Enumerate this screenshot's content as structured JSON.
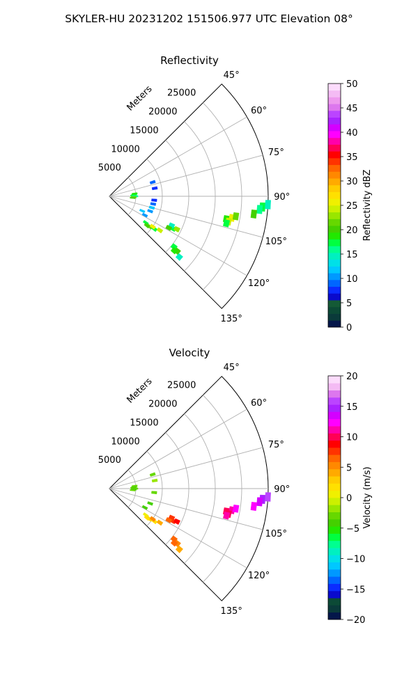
{
  "figure": {
    "suptitle": "SKYLER-HU  20231202  151506.977 UTC Elevation 08°"
  },
  "chart_data": [
    {
      "type": "heatmap",
      "projection": "polar-sector",
      "title": "Reflectivity",
      "radial_label": "Meters",
      "radial_ticks": [
        5000,
        10000,
        15000,
        20000,
        25000
      ],
      "radial_tick_labels": [
        "5000",
        "10000",
        "15000",
        "20000",
        "25000"
      ],
      "rmax": 30000,
      "angle_range_deg": [
        45,
        135
      ],
      "angular_ticks": [
        45,
        60,
        75,
        90,
        105,
        120,
        135
      ],
      "angular_tick_labels": [
        "45°",
        "60°",
        "75°",
        "90°",
        "105°",
        "120°",
        "135°"
      ],
      "grid": true,
      "colorbar": {
        "label": "Reflectivity dBZ",
        "range": [
          0,
          50
        ],
        "ticks": [
          0,
          5,
          10,
          15,
          20,
          25,
          30,
          35,
          40,
          45,
          50
        ],
        "tick_labels": [
          "0",
          "5",
          "10",
          "15",
          "20",
          "25",
          "30",
          "35",
          "40",
          "45",
          "50"
        ],
        "colors": [
          "#04164a",
          "#0a3a3a",
          "#0c4a36",
          "#145a36",
          "#0a0acc",
          "#0b2cff",
          "#0066ff",
          "#0099ff",
          "#00c8ff",
          "#00e0e8",
          "#00f0c0",
          "#00ff90",
          "#00ff40",
          "#22e800",
          "#44d000",
          "#66d800",
          "#99e600",
          "#ccf000",
          "#f0f000",
          "#ffe000",
          "#ffcc00",
          "#ffaa00",
          "#ff8800",
          "#ff6600",
          "#ff3300",
          "#ff0000",
          "#ff0055",
          "#ff00aa",
          "#ff00ff",
          "#d400ff",
          "#aa22ff",
          "#bb44ff",
          "#dd77ee",
          "#ee99ee",
          "#f4bbf4",
          "#fcdcfc"
        ]
      },
      "series": [
        {
          "points": [
            [
              88,
              4500,
              17
            ],
            [
              86,
              4700,
              18
            ],
            [
              90,
              4900,
              16
            ],
            [
              92,
              4600,
              21
            ],
            [
              84,
              4800,
              19
            ],
            [
              94,
              4400,
              20
            ]
          ]
        },
        {
          "points": [
            [
              110,
              8200,
              11
            ],
            [
              105,
              8300,
              12
            ],
            [
              100,
              8400,
              9
            ],
            [
              95,
              8500,
              8
            ],
            [
              80,
              8700,
              7
            ],
            [
              72,
              8600,
              9
            ],
            [
              118,
              7600,
              10
            ],
            [
              114,
              6800,
              12
            ]
          ]
        },
        {
          "points": [
            [
              126,
              8500,
              18
            ],
            [
              127,
              9500,
              22
            ],
            [
              126,
              10500,
              17
            ],
            [
              124,
              11500,
              24
            ],
            [
              125,
              10000,
              26
            ],
            [
              128,
              9000,
              20
            ]
          ]
        },
        {
          "points": [
            [
              117,
              13500,
              18
            ],
            [
              116,
              14200,
              23
            ],
            [
              115,
              13000,
              14
            ],
            [
              118,
              12700,
              20
            ]
          ]
        },
        {
          "points": [
            [
              128,
              15500,
              17
            ],
            [
              129,
              16500,
              20
            ],
            [
              131,
              17500,
              15
            ],
            [
              130,
              16000,
              19
            ]
          ]
        },
        {
          "points": [
            [
              101,
              22500,
              19
            ],
            [
              100,
              23500,
              25
            ],
            [
              99,
              24200,
              22
            ],
            [
              102,
              23000,
              24
            ],
            [
              103,
              22700,
              17
            ]
          ]
        },
        {
          "points": [
            [
              94,
              29000,
              18
            ],
            [
              95,
              28500,
              16
            ],
            [
              97,
              27500,
              20
            ],
            [
              93,
              30000,
              15
            ]
          ]
        }
      ]
    },
    {
      "type": "heatmap",
      "projection": "polar-sector",
      "title": "Velocity",
      "radial_label": "Meters",
      "radial_ticks": [
        5000,
        10000,
        15000,
        20000,
        25000
      ],
      "radial_tick_labels": [
        "5000",
        "10000",
        "15000",
        "20000",
        "25000"
      ],
      "rmax": 30000,
      "angle_range_deg": [
        45,
        135
      ],
      "angular_ticks": [
        45,
        60,
        75,
        90,
        105,
        120,
        135
      ],
      "angular_tick_labels": [
        "45°",
        "60°",
        "75°",
        "90°",
        "105°",
        "120°",
        "135°"
      ],
      "grid": true,
      "colorbar": {
        "label": "Velocity (m/s)",
        "range": [
          -20,
          20
        ],
        "ticks": [
          -20,
          -15,
          -10,
          -5,
          0,
          5,
          10,
          15,
          20
        ],
        "tick_labels": [
          "−20",
          "−15",
          "−10",
          "−5",
          "0",
          "5",
          "10",
          "15",
          "20"
        ],
        "colors": [
          "#04164a",
          "#0a3a3a",
          "#0c4a36",
          "#0a0acc",
          "#0b2cff",
          "#0066ff",
          "#0099ff",
          "#00c8ff",
          "#00e0e8",
          "#00f0c0",
          "#00ff90",
          "#00ff40",
          "#22e800",
          "#44d000",
          "#66d800",
          "#99e600",
          "#ccf000",
          "#f0f000",
          "#ffe000",
          "#ffcc00",
          "#ffaa00",
          "#ff8800",
          "#ff6600",
          "#ff3300",
          "#ff0000",
          "#ff0055",
          "#ff00aa",
          "#ff00ff",
          "#d400ff",
          "#aa22ff",
          "#bb44ff",
          "#dd77ee",
          "#f4bbf4",
          "#fcdcfc"
        ]
      },
      "series": [
        {
          "points": [
            [
              88,
              4500,
              -3
            ],
            [
              86,
              4700,
              -4
            ],
            [
              90,
              4900,
              -3
            ],
            [
              92,
              4600,
              -4
            ],
            [
              84,
              4800,
              -3
            ],
            [
              94,
              4400,
              -3
            ]
          ]
        },
        {
          "points": [
            [
              110,
              8200,
              -4
            ],
            [
              95,
              8500,
              -3
            ],
            [
              80,
              8700,
              -2
            ],
            [
              72,
              8600,
              -3
            ],
            [
              118,
              7600,
              -4
            ]
          ]
        },
        {
          "points": [
            [
              126,
              8500,
              1
            ],
            [
              127,
              9500,
              3
            ],
            [
              126,
              10500,
              2
            ],
            [
              124,
              11500,
              4
            ],
            [
              125,
              10000,
              5
            ],
            [
              128,
              9000,
              2
            ]
          ]
        },
        {
          "points": [
            [
              117,
              13500,
              8
            ],
            [
              116,
              14200,
              9
            ],
            [
              115,
              13000,
              8
            ],
            [
              118,
              12700,
              7
            ]
          ]
        },
        {
          "points": [
            [
              128,
              15500,
              6
            ],
            [
              129,
              16500,
              5
            ],
            [
              131,
              17500,
              4
            ],
            [
              130,
              16000,
              6
            ]
          ]
        },
        {
          "points": [
            [
              101,
              22500,
              10
            ],
            [
              100,
              23500,
              11
            ],
            [
              99,
              24200,
              12
            ],
            [
              102,
              23000,
              10
            ],
            [
              103,
              22700,
              11
            ]
          ]
        },
        {
          "points": [
            [
              94,
              29000,
              15
            ],
            [
              95,
              28500,
              14
            ],
            [
              97,
              27500,
              12
            ],
            [
              93,
              30000,
              16
            ]
          ]
        }
      ]
    }
  ]
}
